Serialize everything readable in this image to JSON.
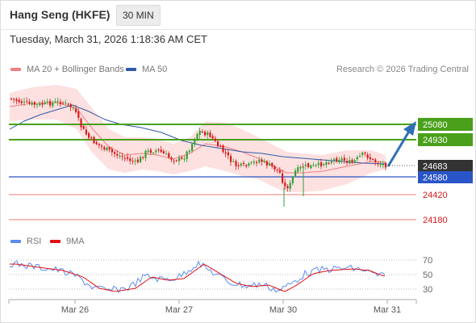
{
  "header": {
    "title": "Hang Seng (HKFE)",
    "timeframe": "30 MIN"
  },
  "datetime": "Tuesday, March 31, 2026 1:18:36 AM CET",
  "legend": {
    "items": [
      {
        "label": "MA 20 + Bollinger Bands",
        "color": "#f08080"
      },
      {
        "label": "MA 50",
        "color": "#2f5aa8"
      }
    ],
    "credit": "Research © 2026 Trading Central"
  },
  "rsi_legend": {
    "items": [
      {
        "label": "RSI",
        "color": "#5b8def"
      },
      {
        "label": "9MA",
        "color": "#e01010"
      }
    ]
  },
  "levels": [
    {
      "label": "25080",
      "style": "green-box"
    },
    {
      "label": "24930",
      "style": "green-box"
    },
    {
      "label": "24683",
      "style": "dark-box"
    },
    {
      "label": "24580",
      "style": "blue-box"
    },
    {
      "label": "24420",
      "style": "red-text"
    },
    {
      "label": "24180",
      "style": "red-text"
    }
  ],
  "rsi_ticks": [
    "70",
    "50",
    "30"
  ],
  "x_labels": [
    "Mar 26",
    "Mar 27",
    "Mar 30",
    "Mar 31"
  ],
  "colors": {
    "bull": "#33a036",
    "bear": "#d91a1a",
    "green_line": "#4aa01a",
    "blue_line": "#2a55c8",
    "red_line": "#f07878",
    "arrow": "#2f6fb8",
    "band_fill": "#fddede"
  }
}
